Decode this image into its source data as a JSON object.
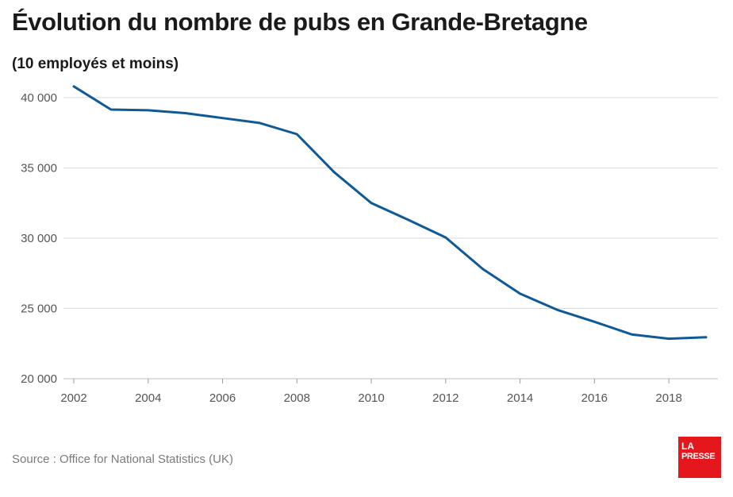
{
  "title": "Évolution du nombre de pubs en Grande-Bretagne",
  "subtitle": "(10 employés et moins)",
  "source": "Source : Office for National Statistics (UK)",
  "logo": {
    "line1": "LA",
    "line2": "PRESSE"
  },
  "colors": {
    "line": "#0f5a96",
    "grid": "#d9d9d9",
    "tick_text": "#555555"
  },
  "chart_data": {
    "type": "line",
    "x": [
      2002,
      2003,
      2004,
      2005,
      2006,
      2007,
      2008,
      2009,
      2010,
      2011,
      2012,
      2013,
      2014,
      2015,
      2016,
      2017,
      2018,
      2019
    ],
    "series": [
      {
        "values": [
          40800,
          39150,
          39100,
          38900,
          38550,
          38200,
          37400,
          34700,
          32500,
          31300,
          30050,
          27800,
          26050,
          24900,
          24050,
          23150,
          22850,
          22950
        ]
      }
    ],
    "xticks": [
      "2002",
      "2004",
      "2006",
      "2008",
      "2010",
      "2012",
      "2014",
      "2016",
      "2018"
    ],
    "yticks": [
      "20 000",
      "25 000",
      "30 000",
      "35 000",
      "40 000"
    ],
    "ylim": [
      20000,
      40000
    ],
    "xlim": [
      2002,
      2019
    ],
    "grid": "horizontal",
    "xlabel": "",
    "ylabel": ""
  }
}
